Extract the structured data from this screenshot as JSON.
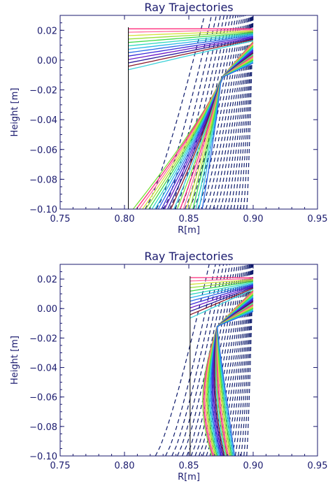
{
  "chart_data": [
    {
      "type": "line",
      "title": "Ray Trajectories",
      "xlabel": "R[m]",
      "ylabel": "Height [m]",
      "xlim": [
        0.75,
        0.95
      ],
      "ylim": [
        -0.1,
        0.03
      ],
      "xticks": [
        "0.75",
        "0.80",
        "0.85",
        "0.90",
        "0.95"
      ],
      "yticks": [
        "0.02",
        "0.00",
        "−0.02",
        "−0.04",
        "−0.06",
        "−0.08",
        "−0.10"
      ],
      "boundary_line_x": 0.803,
      "ray_source_x": 0.9,
      "ray_source_y_range": [
        -0.002,
        0.021
      ],
      "ray_count": 36,
      "focus": [
        0.875,
        -0.012
      ],
      "ray_end_x_range": [
        0.803,
        0.86
      ],
      "flux_surface_lines": "dashed"
    },
    {
      "type": "line",
      "title": "Ray Trajectories",
      "xlabel": "R[m]",
      "ylabel": "Height [m]",
      "xlim": [
        0.75,
        0.95
      ],
      "ylim": [
        -0.1,
        0.03
      ],
      "xticks": [
        "0.75",
        "0.80",
        "0.85",
        "0.90",
        "0.95"
      ],
      "yticks": [
        "0.02",
        "0.00",
        "−0.02",
        "−0.04",
        "−0.06",
        "−0.08",
        "−0.10"
      ],
      "boundary_line_x": 0.851,
      "ray_source_x": 0.9,
      "ray_source_y_range": [
        -0.002,
        0.021
      ],
      "ray_count": 36,
      "focus": [
        0.872,
        -0.012
      ],
      "ray_end_x_range": [
        0.86,
        0.885
      ],
      "flux_surface_lines": "dashed"
    }
  ],
  "colors": {
    "axis": "#1a1a6e",
    "dashed": "#0d1a6b",
    "palette": [
      "#ff2a7a",
      "#ff6fa0",
      "#d4e23a",
      "#9adf3a",
      "#3cd94a",
      "#2fd9c0",
      "#28b6e8",
      "#2a6ae8",
      "#3a2ad8",
      "#6a1ac8",
      "#2a1a9a",
      "#8a1a2a",
      "#3ad0d8",
      "#7ae03a"
    ]
  }
}
